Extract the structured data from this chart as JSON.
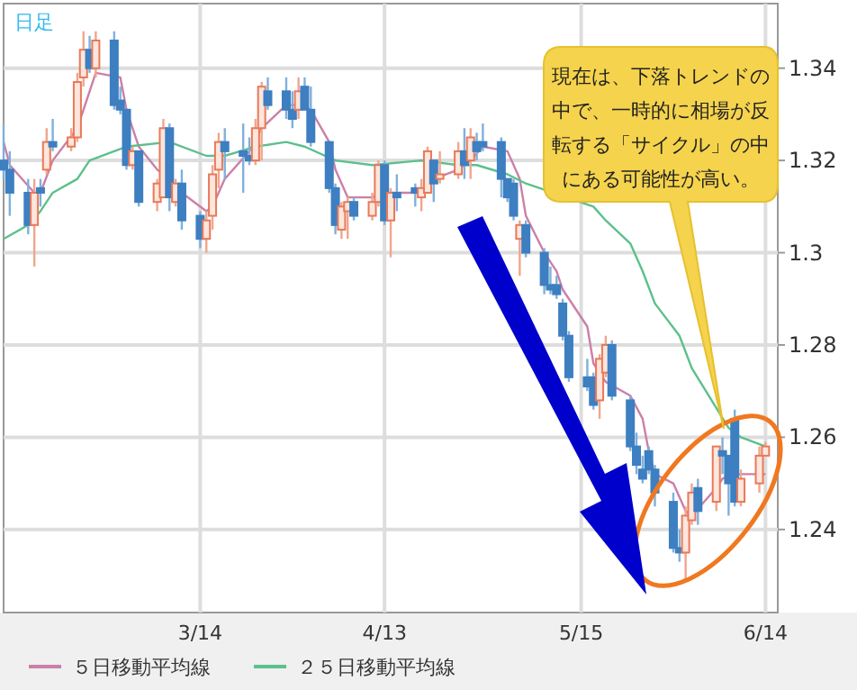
{
  "chart_data": {
    "type": "candlestick",
    "legend": "bottom",
    "grid": true,
    "annotations": [
      "日足",
      "現在は、下落トレンドの中で、一時的に相場が反転する「サイクル」の中にある可能性が高い。"
    ],
    "xlim": [
      "--02-11",
      "--06-16"
    ],
    "xticks": [
      {
        "value": "--03-14",
        "label": "3/14"
      },
      {
        "value": "--04-13",
        "label": "4/13"
      },
      {
        "value": "--05-15",
        "label": "5/15"
      },
      {
        "value": "--06-14",
        "label": "6/14"
      }
    ],
    "ylim": [
      1.222,
      1.354
    ],
    "yticks": [
      1.24,
      1.26,
      1.28,
      1.3,
      1.32,
      1.34
    ],
    "x": [
      "--02-11",
      "--02-12",
      "--02-15",
      "--02-16",
      "--02-17",
      "--02-18",
      "--02-19",
      "--02-22",
      "--02-23",
      "--02-24",
      "--02-25",
      "--02-26",
      "--02-29",
      "--03-01",
      "--03-02",
      "--03-03",
      "--03-04",
      "--03-07",
      "--03-08",
      "--03-09",
      "--03-10",
      "--03-11",
      "--03-14",
      "--03-15",
      "--03-16",
      "--03-17",
      "--03-18",
      "--03-21",
      "--03-22",
      "--03-23",
      "--03-24",
      "--03-25",
      "--03-28",
      "--03-29",
      "--03-30",
      "--03-31",
      "--04-01",
      "--04-04",
      "--04-05",
      "--04-06",
      "--04-07",
      "--04-08",
      "--04-11",
      "--04-12",
      "--04-13",
      "--04-14",
      "--04-15",
      "--04-18",
      "--04-19",
      "--04-20",
      "--04-21",
      "--04-22",
      "--04-25",
      "--04-26",
      "--04-27",
      "--04-28",
      "--04-29",
      "--05-02",
      "--05-03",
      "--05-04",
      "--05-05",
      "--05-06",
      "--05-09",
      "--05-10",
      "--05-11",
      "--05-12",
      "--05-13",
      "--05-16",
      "--05-17",
      "--05-18",
      "--05-19",
      "--05-20",
      "--05-23",
      "--05-24",
      "--05-25",
      "--05-26",
      "--05-27",
      "--05-30",
      "--05-31",
      "--06-01",
      "--06-02",
      "--06-03",
      "--06-06",
      "--06-07",
      "--06-08",
      "--06-09",
      "--06-10",
      "--06-13",
      "--06-14"
    ],
    "ohlc": [
      [
        1.32,
        1.328,
        1.316,
        1.318
      ],
      [
        1.318,
        1.322,
        1.308,
        1.313
      ],
      [
        1.313,
        1.316,
        1.304,
        1.306
      ],
      [
        1.306,
        1.316,
        1.297,
        1.313
      ],
      [
        1.314,
        1.316,
        1.31,
        1.313
      ],
      [
        1.318,
        1.327,
        1.317,
        1.324
      ],
      [
        1.324,
        1.329,
        1.322,
        1.323
      ],
      [
        1.323,
        1.327,
        1.322,
        1.325
      ],
      [
        1.325,
        1.339,
        1.324,
        1.337
      ],
      [
        1.338,
        1.348,
        1.336,
        1.344
      ],
      [
        1.344,
        1.347,
        1.339,
        1.34
      ],
      [
        1.34,
        1.348,
        1.338,
        1.346
      ],
      [
        1.346,
        1.348,
        1.331,
        1.332
      ],
      [
        1.333,
        1.336,
        1.33,
        1.331
      ],
      [
        1.331,
        1.331,
        1.318,
        1.319
      ],
      [
        1.319,
        1.323,
        1.318,
        1.322
      ],
      [
        1.322,
        1.322,
        1.31,
        1.311
      ],
      [
        1.311,
        1.316,
        1.309,
        1.315
      ],
      [
        1.312,
        1.329,
        1.312,
        1.327
      ],
      [
        1.327,
        1.328,
        1.309,
        1.312
      ],
      [
        1.311,
        1.316,
        1.31,
        1.315
      ],
      [
        1.315,
        1.318,
        1.305,
        1.307
      ],
      [
        1.308,
        1.309,
        1.301,
        1.303
      ],
      [
        1.303,
        1.309,
        1.3,
        1.307
      ],
      [
        1.308,
        1.319,
        1.305,
        1.317
      ],
      [
        1.318,
        1.326,
        1.314,
        1.324
      ],
      [
        1.324,
        1.327,
        1.316,
        1.322
      ],
      [
        1.322,
        1.328,
        1.313,
        1.321
      ],
      [
        1.321,
        1.325,
        1.319,
        1.32
      ],
      [
        1.32,
        1.329,
        1.319,
        1.327
      ],
      [
        1.327,
        1.337,
        1.32,
        1.336
      ],
      [
        1.335,
        1.338,
        1.331,
        1.332
      ],
      [
        1.335,
        1.338,
        1.329,
        1.331
      ],
      [
        1.331,
        1.335,
        1.327,
        1.329
      ],
      [
        1.331,
        1.338,
        1.329,
        1.335
      ],
      [
        1.336,
        1.338,
        1.331,
        1.331
      ],
      [
        1.331,
        1.336,
        1.323,
        1.324
      ],
      [
        1.324,
        1.324,
        1.313,
        1.314
      ],
      [
        1.314,
        1.315,
        1.304,
        1.306
      ],
      [
        1.305,
        1.311,
        1.303,
        1.31
      ],
      [
        1.309,
        1.312,
        1.303,
        1.311
      ],
      [
        1.311,
        1.312,
        1.307,
        1.308
      ],
      [
        1.308,
        1.313,
        1.307,
        1.311
      ],
      [
        1.311,
        1.32,
        1.31,
        1.319
      ],
      [
        1.319,
        1.32,
        1.306,
        1.307
      ],
      [
        1.307,
        1.314,
        1.299,
        1.313
      ],
      [
        1.313,
        1.317,
        1.309,
        1.312
      ],
      [
        1.314,
        1.315,
        1.31,
        1.313
      ],
      [
        1.312,
        1.316,
        1.309,
        1.314
      ],
      [
        1.313,
        1.323,
        1.313,
        1.322
      ],
      [
        1.32,
        1.32,
        1.311,
        1.315
      ],
      [
        1.316,
        1.322,
        1.315,
        1.317
      ],
      [
        1.317,
        1.324,
        1.316,
        1.322
      ],
      [
        1.322,
        1.327,
        1.316,
        1.319
      ],
      [
        1.32,
        1.327,
        1.316,
        1.325
      ],
      [
        1.324,
        1.326,
        1.32,
        1.322
      ],
      [
        1.324,
        1.328,
        1.322,
        1.323
      ],
      [
        1.324,
        1.325,
        1.312,
        1.316
      ],
      [
        1.316,
        1.316,
        1.311,
        1.312
      ],
      [
        1.315,
        1.316,
        1.307,
        1.308
      ],
      [
        1.303,
        1.307,
        1.295,
        1.306
      ],
      [
        1.306,
        1.307,
        1.299,
        1.3
      ],
      [
        1.3,
        1.301,
        1.291,
        1.293
      ],
      [
        1.293,
        1.297,
        1.291,
        1.292
      ],
      [
        1.293,
        1.295,
        1.29,
        1.291
      ],
      [
        1.289,
        1.29,
        1.281,
        1.282
      ],
      [
        1.282,
        1.283,
        1.272,
        1.273
      ],
      [
        1.273,
        1.277,
        1.27,
        1.271
      ],
      [
        1.273,
        1.274,
        1.266,
        1.267
      ],
      [
        1.268,
        1.278,
        1.264,
        1.277
      ],
      [
        1.274,
        1.282,
        1.273,
        1.28
      ],
      [
        1.28,
        1.281,
        1.268,
        1.269
      ],
      [
        1.268,
        1.269,
        1.257,
        1.258
      ],
      [
        1.258,
        1.261,
        1.252,
        1.254
      ],
      [
        1.253,
        1.256,
        1.25,
        1.251
      ],
      [
        1.257,
        1.258,
        1.252,
        1.253
      ],
      [
        1.253,
        1.254,
        1.245,
        1.248
      ],
      [
        1.246,
        1.248,
        1.235,
        1.236
      ],
      [
        1.236,
        1.24,
        1.233,
        1.235
      ],
      [
        1.235,
        1.245,
        1.229,
        1.243
      ],
      [
        1.242,
        1.25,
        1.241,
        1.248
      ],
      [
        1.249,
        1.251,
        1.241,
        1.244
      ],
      [
        1.246,
        1.258,
        1.244,
        1.258
      ],
      [
        1.257,
        1.26,
        1.252,
        1.256
      ],
      [
        1.256,
        1.256,
        1.243,
        1.25
      ],
      [
        1.264,
        1.266,
        1.245,
        1.246
      ],
      [
        1.246,
        1.253,
        1.245,
        1.251
      ],
      [
        1.25,
        1.258,
        1.248,
        1.256
      ],
      [
        1.256,
        1.259,
        1.256,
        1.258
      ]
    ],
    "series": [
      {
        "name": "５日移動平均線",
        "type": "line",
        "color": "#cc7fa8",
        "x": [
          "--02-11",
          "--02-12",
          "--02-16",
          "--02-17",
          "--02-19",
          "--02-23",
          "--02-25",
          "--02-26",
          "--03-01",
          "--03-02",
          "--03-04",
          "--03-07",
          "--03-09",
          "--03-11",
          "--03-15",
          "--03-16",
          "--03-18",
          "--03-22",
          "--03-24",
          "--03-28",
          "--03-30",
          "--04-01",
          "--04-04",
          "--04-05",
          "--04-07",
          "--04-11",
          "--04-13",
          "--04-19",
          "--04-21",
          "--04-25",
          "--04-27",
          "--04-29",
          "--05-03",
          "--05-05",
          "--05-06",
          "--05-09",
          "--05-11",
          "--05-12",
          "--05-16",
          "--05-17",
          "--05-19",
          "--05-23",
          "--05-25",
          "--05-26",
          "--05-27",
          "--05-30",
          "--06-01",
          "--06-02",
          "--06-06",
          "--06-07",
          "--06-09",
          "--06-14"
        ],
        "values": [
          1.324,
          1.319,
          1.313,
          1.313,
          1.32,
          1.327,
          1.335,
          1.339,
          1.338,
          1.331,
          1.323,
          1.318,
          1.316,
          1.313,
          1.309,
          1.31,
          1.316,
          1.322,
          1.327,
          1.332,
          1.332,
          1.331,
          1.324,
          1.318,
          1.312,
          1.312,
          1.313,
          1.313,
          1.316,
          1.318,
          1.32,
          1.323,
          1.322,
          1.316,
          1.308,
          1.3,
          1.296,
          1.292,
          1.284,
          1.276,
          1.272,
          1.269,
          1.264,
          1.257,
          1.252,
          1.25,
          1.244,
          1.243,
          1.249,
          1.251,
          1.252,
          1.252
        ]
      },
      {
        "name": "２５日移動平均線",
        "type": "line",
        "color": "#5cc08c",
        "x": [
          "--02-11",
          "--02-15",
          "--02-17",
          "--02-19",
          "--02-23",
          "--02-25",
          "--02-29",
          "--03-02",
          "--03-09",
          "--03-15",
          "--03-18",
          "--03-23",
          "--03-28",
          "--03-31",
          "--04-05",
          "--04-11",
          "--04-19",
          "--04-25",
          "--04-28",
          "--05-03",
          "--05-06",
          "--05-17",
          "--05-19",
          "--05-23",
          "--05-25",
          "--05-27",
          "--05-31",
          "--06-02",
          "--06-08",
          "--06-10",
          "--06-14"
        ],
        "values": [
          1.303,
          1.306,
          1.309,
          1.313,
          1.316,
          1.32,
          1.322,
          1.323,
          1.324,
          1.321,
          1.321,
          1.323,
          1.324,
          1.323,
          1.32,
          1.319,
          1.32,
          1.319,
          1.319,
          1.317,
          1.315,
          1.31,
          1.307,
          1.302,
          1.296,
          1.289,
          1.282,
          1.275,
          1.262,
          1.26,
          1.258
        ]
      }
    ]
  }
}
